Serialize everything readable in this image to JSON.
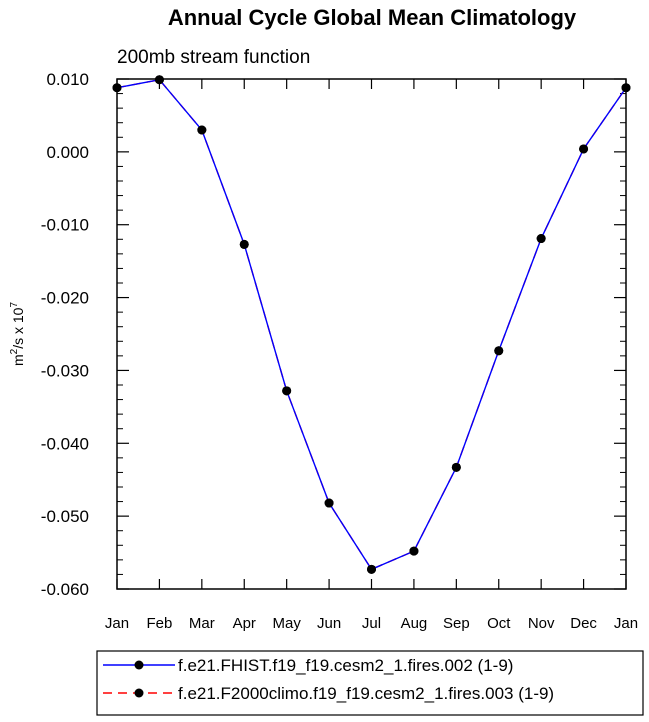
{
  "chart_data": {
    "type": "line",
    "title": "Annual Cycle Global Mean Climatology",
    "subtitle": "200mb stream function",
    "ylabel": {
      "base": "m",
      "sup1": "2",
      "mid": "/s x 10",
      "sup2": "7"
    },
    "xlabel": "",
    "categories": [
      "Jan",
      "Feb",
      "Mar",
      "Apr",
      "May",
      "Jun",
      "Jul",
      "Aug",
      "Sep",
      "Oct",
      "Nov",
      "Dec",
      "Jan"
    ],
    "ylim": [
      -0.06,
      0.01
    ],
    "yticks": [
      0.01,
      0.0,
      -0.01,
      -0.02,
      -0.03,
      -0.04,
      -0.05,
      -0.06
    ],
    "ytick_labels": [
      "0.010",
      "0.000",
      "-0.010",
      "-0.020",
      "-0.030",
      "-0.040",
      "-0.050",
      "-0.060"
    ],
    "grid": false,
    "legend_position": "bottom",
    "series": [
      {
        "name": "f.e21.FHIST.f19_f19.cesm2_1.fires.002 (1-9)",
        "color": "#0000ff",
        "dash": "solid",
        "values": [
          0.0088,
          0.0099,
          0.003,
          -0.0127,
          -0.0328,
          -0.0482,
          -0.0573,
          -0.0548,
          -0.0433,
          -0.0273,
          -0.0119,
          0.0004,
          0.0088
        ]
      },
      {
        "name": "f.e21.F2000climo.f19_f19.cesm2_1.fires.003 (1-9)",
        "color": "#ff0000",
        "dash": "dashed",
        "values": [
          0.0088,
          0.0099,
          0.003,
          -0.0127,
          -0.0328,
          -0.0482,
          -0.0573,
          -0.0548,
          -0.0433,
          -0.0273,
          -0.0119,
          0.0004,
          0.0088
        ]
      }
    ]
  }
}
